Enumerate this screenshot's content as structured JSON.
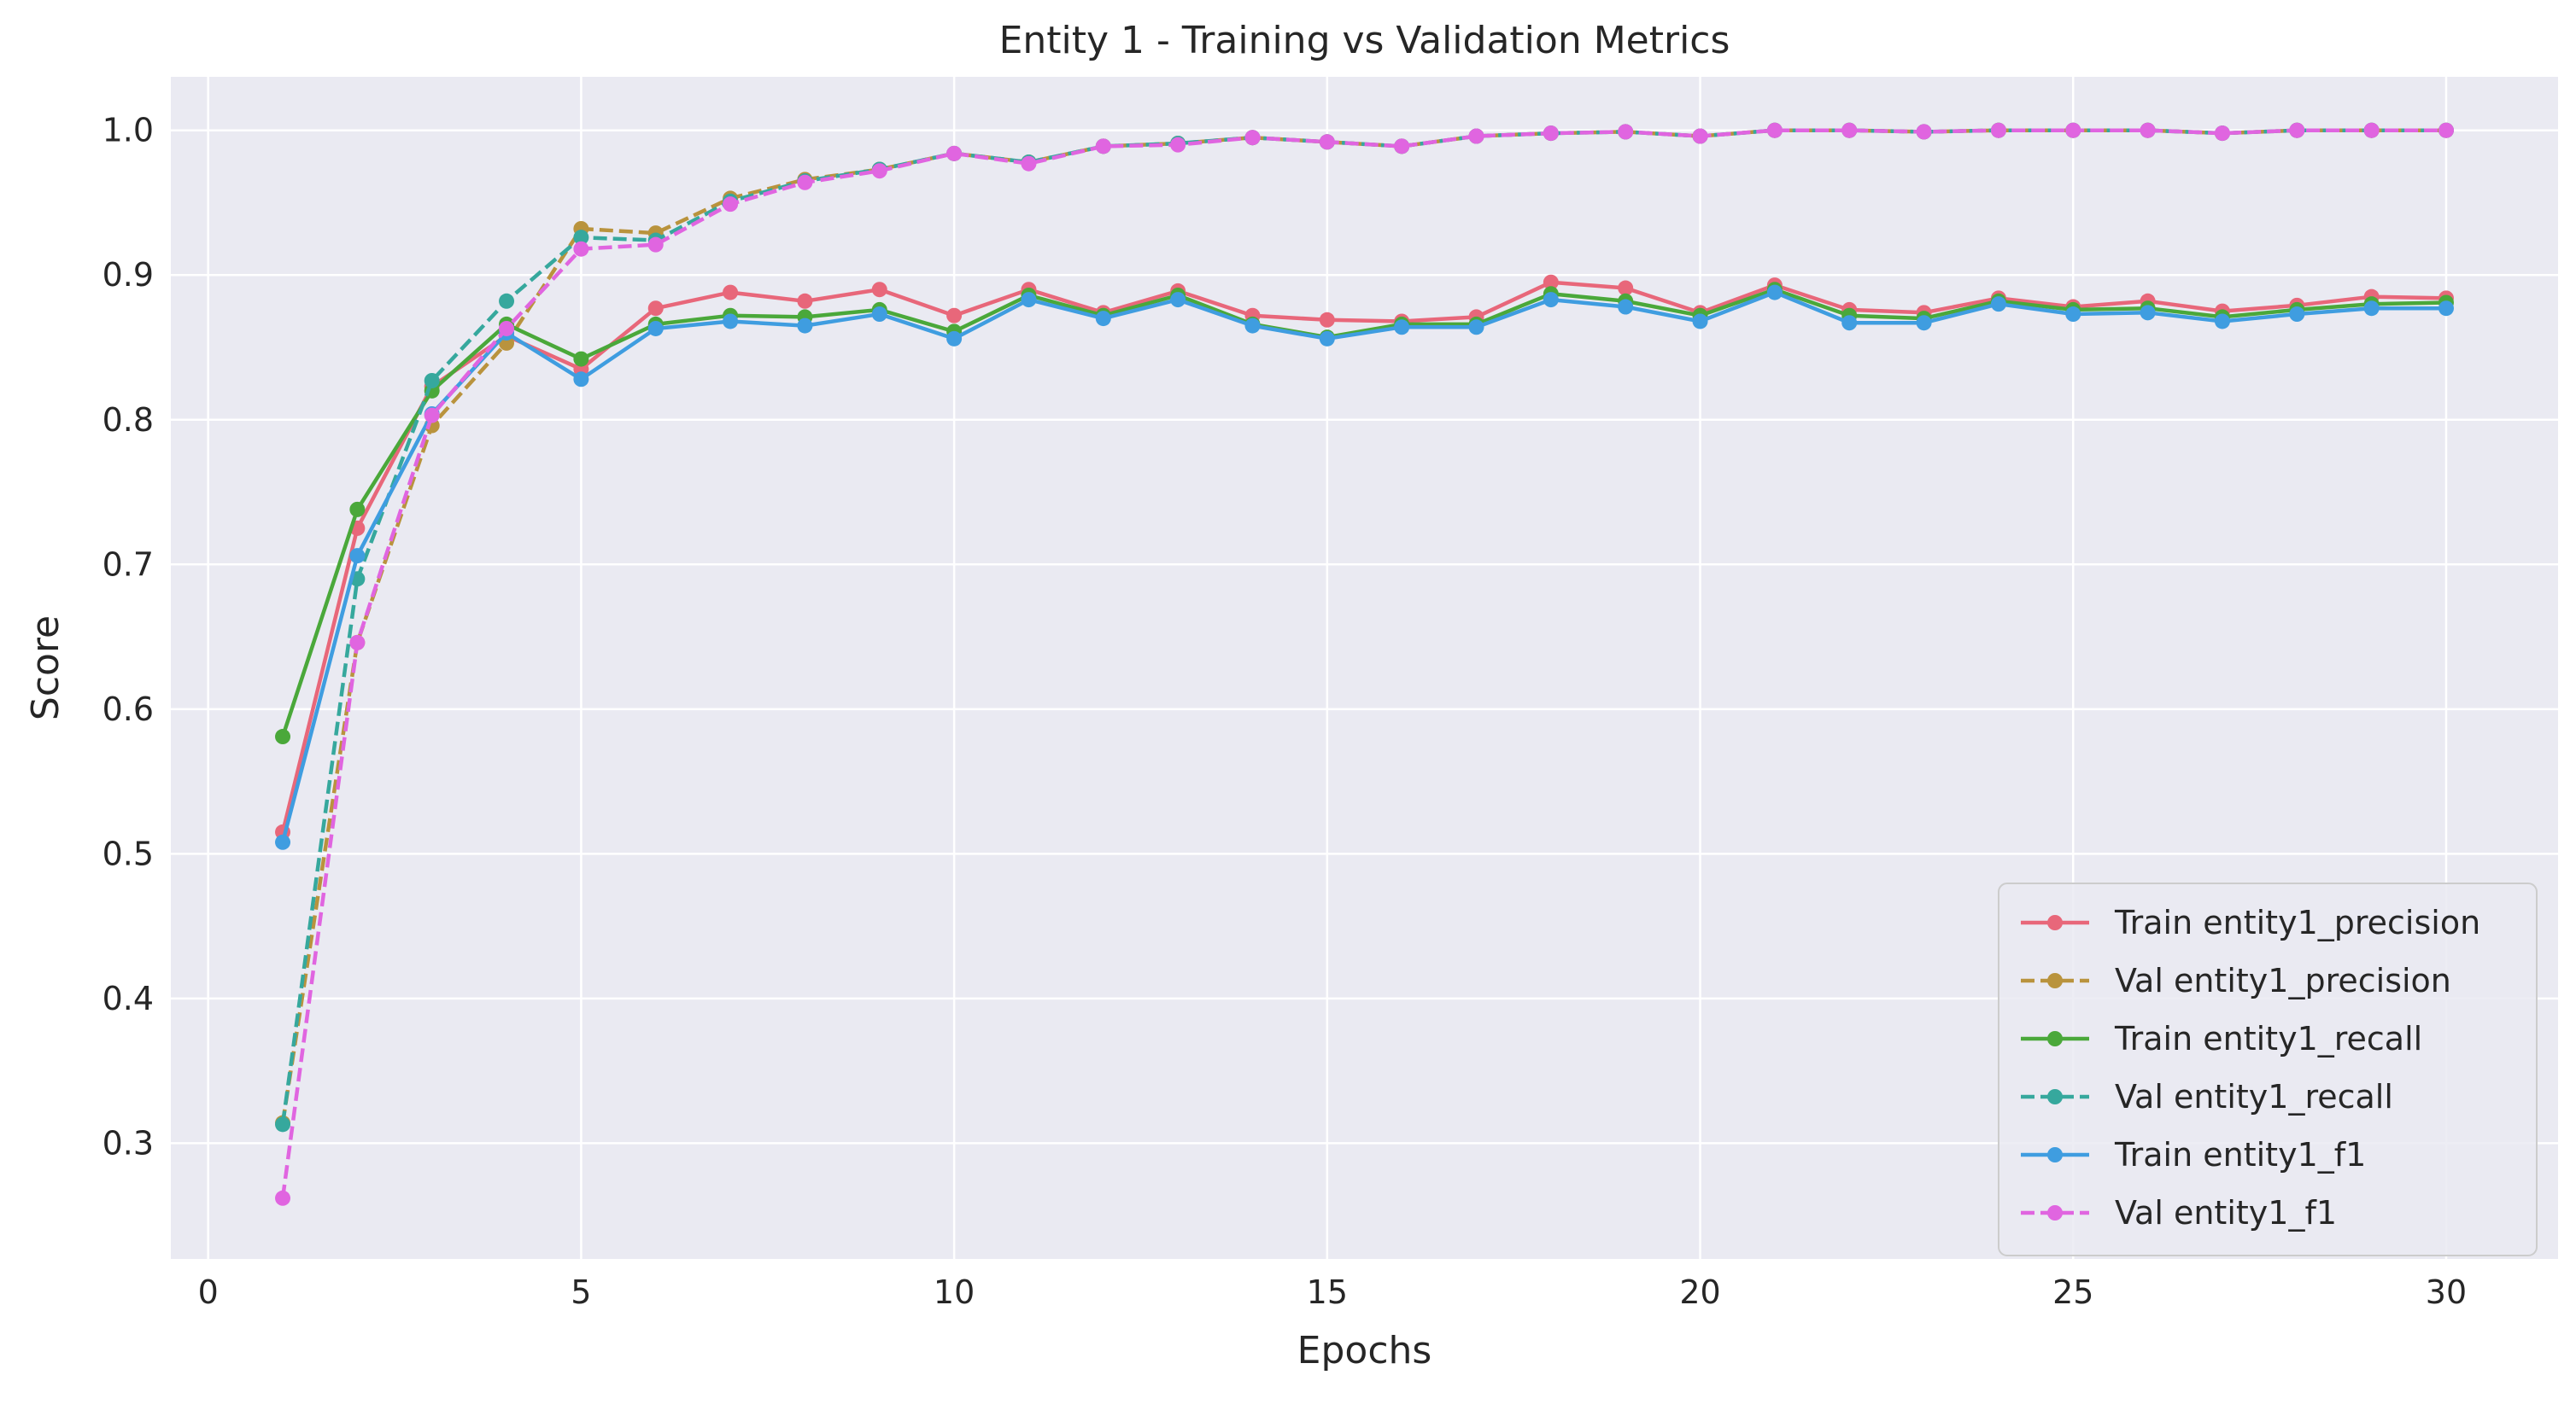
{
  "chart_data": {
    "type": "line",
    "title": "Entity 1 - Training vs Validation Metrics",
    "xlabel": "Epochs",
    "ylabel": "Score",
    "xlim": [
      -0.5,
      31.5
    ],
    "ylim": [
      0.22,
      1.037
    ],
    "xticks": [
      0,
      5,
      10,
      15,
      20,
      25,
      30
    ],
    "yticks": [
      0.3,
      0.4,
      0.5,
      0.6,
      0.7,
      0.8,
      0.9,
      1.0
    ],
    "grid": true,
    "legend_position": "bottom-right",
    "x": [
      1,
      2,
      3,
      4,
      5,
      6,
      7,
      8,
      9,
      10,
      11,
      12,
      13,
      14,
      15,
      16,
      17,
      18,
      19,
      20,
      21,
      22,
      23,
      24,
      25,
      26,
      27,
      28,
      29,
      30
    ],
    "series": [
      {
        "name": "Train entity1_precision",
        "color": "#e8677a",
        "dashed": false,
        "values": [
          0.515,
          0.725,
          0.823,
          0.858,
          0.835,
          0.877,
          0.888,
          0.882,
          0.89,
          0.872,
          0.89,
          0.874,
          0.889,
          0.872,
          0.869,
          0.868,
          0.871,
          0.895,
          0.891,
          0.874,
          0.893,
          0.876,
          0.874,
          0.884,
          0.878,
          0.882,
          0.875,
          0.879,
          0.885,
          0.884
        ]
      },
      {
        "name": "Val entity1_precision",
        "color": "#b9933d",
        "dashed": true,
        "values": [
          0.314,
          0.646,
          0.796,
          0.853,
          0.932,
          0.929,
          0.953,
          0.966,
          0.973,
          0.984,
          0.978,
          0.989,
          0.991,
          0.995,
          0.992,
          0.989,
          0.996,
          0.998,
          0.999,
          0.996,
          1.0,
          1.0,
          0.999,
          1.0,
          1.0,
          1.0,
          0.998,
          1.0,
          1.0,
          1.0
        ]
      },
      {
        "name": "Train entity1_recall",
        "color": "#4aa83a",
        "dashed": false,
        "values": [
          0.581,
          0.738,
          0.82,
          0.866,
          0.842,
          0.866,
          0.872,
          0.871,
          0.876,
          0.861,
          0.886,
          0.872,
          0.886,
          0.866,
          0.857,
          0.866,
          0.866,
          0.887,
          0.882,
          0.872,
          0.89,
          0.872,
          0.87,
          0.882,
          0.876,
          0.877,
          0.871,
          0.876,
          0.88,
          0.881
        ]
      },
      {
        "name": "Val entity1_recall",
        "color": "#36a89d",
        "dashed": true,
        "values": [
          0.313,
          0.69,
          0.827,
          0.882,
          0.926,
          0.924,
          0.951,
          0.965,
          0.973,
          0.984,
          0.978,
          0.989,
          0.991,
          0.995,
          0.992,
          0.989,
          0.996,
          0.998,
          0.999,
          0.996,
          1.0,
          1.0,
          0.999,
          1.0,
          1.0,
          1.0,
          0.998,
          1.0,
          1.0,
          1.0
        ]
      },
      {
        "name": "Train entity1_f1",
        "color": "#3f9de0",
        "dashed": false,
        "values": [
          0.508,
          0.706,
          0.804,
          0.86,
          0.828,
          0.863,
          0.868,
          0.865,
          0.873,
          0.856,
          0.883,
          0.87,
          0.883,
          0.865,
          0.856,
          0.864,
          0.864,
          0.883,
          0.878,
          0.868,
          0.888,
          0.867,
          0.867,
          0.88,
          0.873,
          0.874,
          0.868,
          0.873,
          0.877,
          0.877
        ]
      },
      {
        "name": "Val entity1_f1",
        "color": "#e065e0",
        "dashed": true,
        "values": [
          0.262,
          0.646,
          0.803,
          0.863,
          0.918,
          0.921,
          0.949,
          0.964,
          0.972,
          0.984,
          0.977,
          0.989,
          0.99,
          0.995,
          0.992,
          0.989,
          0.996,
          0.998,
          0.999,
          0.996,
          1.0,
          1.0,
          0.999,
          1.0,
          1.0,
          1.0,
          0.998,
          1.0,
          1.0,
          1.0
        ]
      }
    ]
  }
}
